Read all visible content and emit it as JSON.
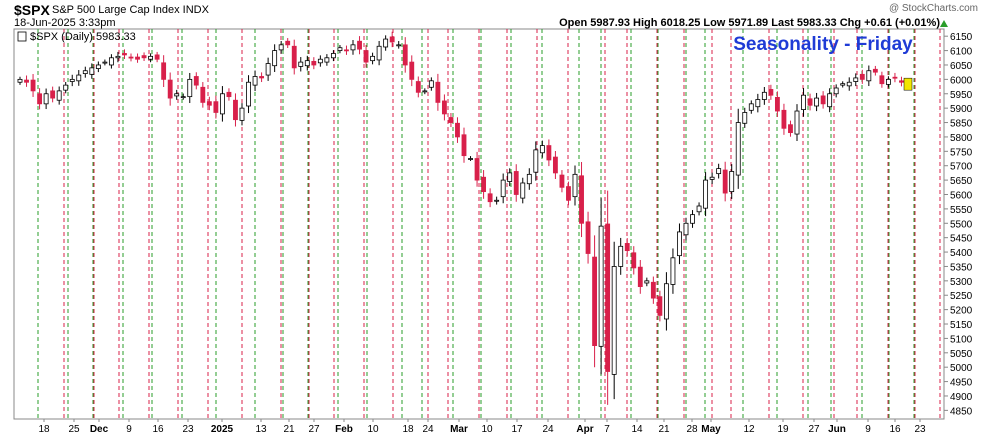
{
  "header": {
    "symbol": "$SPX",
    "description": "S&P 500 Large Cap Index INDX",
    "watermark": "@ StockCharts.com",
    "datetime": "18-Jun-2025 3:33pm",
    "ohlc_text": "Open 5987.93  High 6018.25  Low 5971.89  Last 5983.33  Chg +0.61 (+0.01%)"
  },
  "chart_data": {
    "type": "candlestick",
    "legend": "$SPX (Daily) 5983.33",
    "title": "Seasonality - Friday",
    "title_color": "#1f3bd6",
    "ylim": [
      4820,
      6175
    ],
    "y_ticks": [
      4850,
      4900,
      4950,
      5000,
      5050,
      5100,
      5150,
      5200,
      5250,
      5300,
      5350,
      5400,
      5450,
      5500,
      5550,
      5600,
      5650,
      5700,
      5750,
      5800,
      5850,
      5900,
      5950,
      6000,
      6050,
      6100,
      6150
    ],
    "x_labels": [
      "18",
      "25",
      "Dec",
      "9",
      "16",
      "23",
      "2025",
      "13",
      "21",
      "27",
      "Feb",
      "10",
      "18",
      "24",
      "Mar",
      "10",
      "17",
      "24",
      "Apr",
      "7",
      "14",
      "21",
      "28",
      "May",
      "12",
      "19",
      "27",
      "Jun",
      "9",
      "16",
      "23"
    ],
    "bold_x_labels": [
      "Dec",
      "2025",
      "Feb",
      "Mar",
      "Apr",
      "May",
      "Jun"
    ],
    "colors": {
      "up": "#ffffff",
      "down": "#d8204a",
      "black": "#000000",
      "friday_line": "#d8204a",
      "monday_line": "#2a9d2a",
      "last_marker": "#f2e600"
    },
    "closes": [
      6000,
      5990,
      5960,
      5915,
      5950,
      5935,
      5960,
      5980,
      6000,
      6015,
      6030,
      6040,
      6050,
      6060,
      6075,
      6080,
      6085,
      6075,
      6070,
      6075,
      6080,
      6070,
      6000,
      5935,
      5950,
      5940,
      6000,
      5980,
      5920,
      5910,
      5885,
      5950,
      5940,
      5860,
      5900,
      5990,
      6010,
      6005,
      6055,
      6100,
      6120,
      6120,
      6040,
      6060,
      6065,
      6050,
      6070,
      6075,
      6090,
      6110,
      6100,
      6120,
      6105,
      6060,
      6080,
      6115,
      6140,
      6130,
      6120,
      6050,
      6000,
      5955,
      5960,
      5995,
      5920,
      5880,
      5850,
      5800,
      5735,
      5725,
      5650,
      5610,
      5575,
      5580,
      5650,
      5675,
      5600,
      5640,
      5670,
      5755,
      5770,
      5720,
      5675,
      5625,
      5580,
      5670,
      5500,
      5395,
      5075,
      5490,
      4985,
      5350,
      5420,
      5405,
      5345,
      5280,
      5300,
      5240,
      5180,
      5290,
      5380,
      5470,
      5500,
      5530,
      5560,
      5650,
      5660,
      5690,
      5605,
      5680,
      5850,
      5885,
      5915,
      5930,
      5955,
      5945,
      5890,
      5830,
      5815,
      5890,
      5945,
      5910,
      5935,
      5915,
      5950,
      5970,
      5985,
      5990,
      6005,
      6000,
      6030,
      6025,
      5985,
      6000,
      6005,
      5990,
      5983
    ],
    "last_close": 5983.33
  }
}
